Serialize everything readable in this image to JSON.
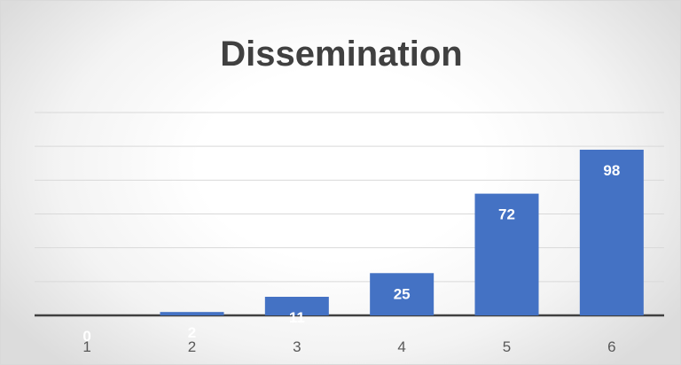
{
  "chart_data": {
    "type": "bar",
    "title": "Dissemination",
    "categories": [
      "1",
      "2",
      "3",
      "4",
      "5",
      "6"
    ],
    "values": [
      0,
      2,
      11,
      25,
      72,
      98
    ],
    "data_labels": [
      "0",
      "2",
      "11",
      "25",
      "72",
      "98"
    ],
    "xlabel": "",
    "ylabel": "",
    "ylim": [
      0,
      120
    ],
    "y_step": 20,
    "grid": true,
    "legend": "none",
    "bar_color": "#4472c4"
  }
}
